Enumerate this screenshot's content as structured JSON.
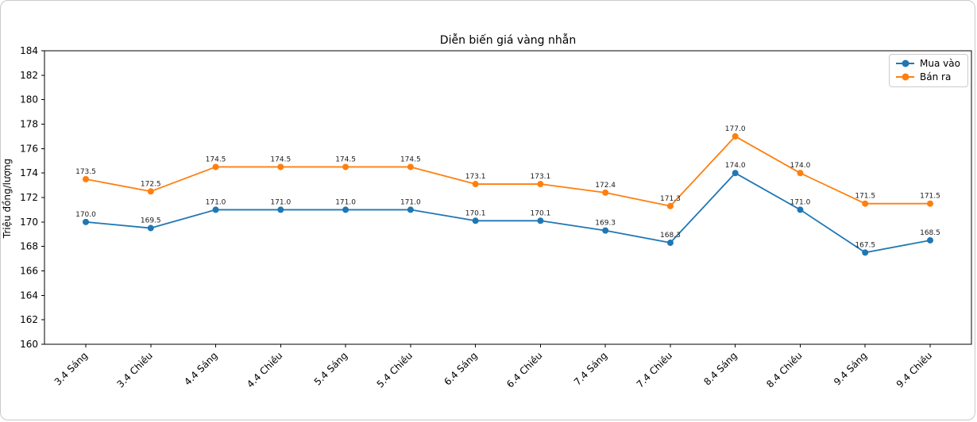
{
  "page": {
    "background": "#ffffff",
    "frame_border_color": "#c9c9c9"
  },
  "chart_data": {
    "type": "line",
    "title": "Diễn biến giá vàng nhẫn",
    "xlabel": "",
    "ylabel": "Triệu đồng/lượng",
    "categories": [
      "3.4 Sáng",
      "3.4 Chiều",
      "4.4 Sáng",
      "4.4 Chiều",
      "5.4 Sáng",
      "5.4 Chiều",
      "6.4 Sáng",
      "6.4 Chiều",
      "7.4 Sáng",
      "7.4 Chiều",
      "8.4 Sáng",
      "8.4 Chiều",
      "9.4 Sáng",
      "9.4 Chiều"
    ],
    "series": [
      {
        "name": "Mua vào",
        "color": "#1f77b4",
        "values": [
          170.0,
          169.5,
          171.0,
          171.0,
          171.0,
          171.0,
          170.1,
          170.1,
          169.3,
          168.3,
          174.0,
          171.0,
          167.5,
          168.5
        ]
      },
      {
        "name": "Bán ra",
        "color": "#ff7f0e",
        "values": [
          173.5,
          172.5,
          174.5,
          174.5,
          174.5,
          174.5,
          173.1,
          173.1,
          172.4,
          171.3,
          177.0,
          174.0,
          171.5,
          171.5
        ]
      }
    ],
    "ylim": [
      160,
      184
    ],
    "ytick_step": 2,
    "grid": false,
    "legend_position": "upper right",
    "marker": "circle",
    "data_labels": true,
    "data_label_decimals": 1,
    "axis_color": "#000000",
    "tick_label_color": "#000000",
    "data_label_color": "#1a1a1a",
    "x_tick_rotation_deg": 45
  }
}
